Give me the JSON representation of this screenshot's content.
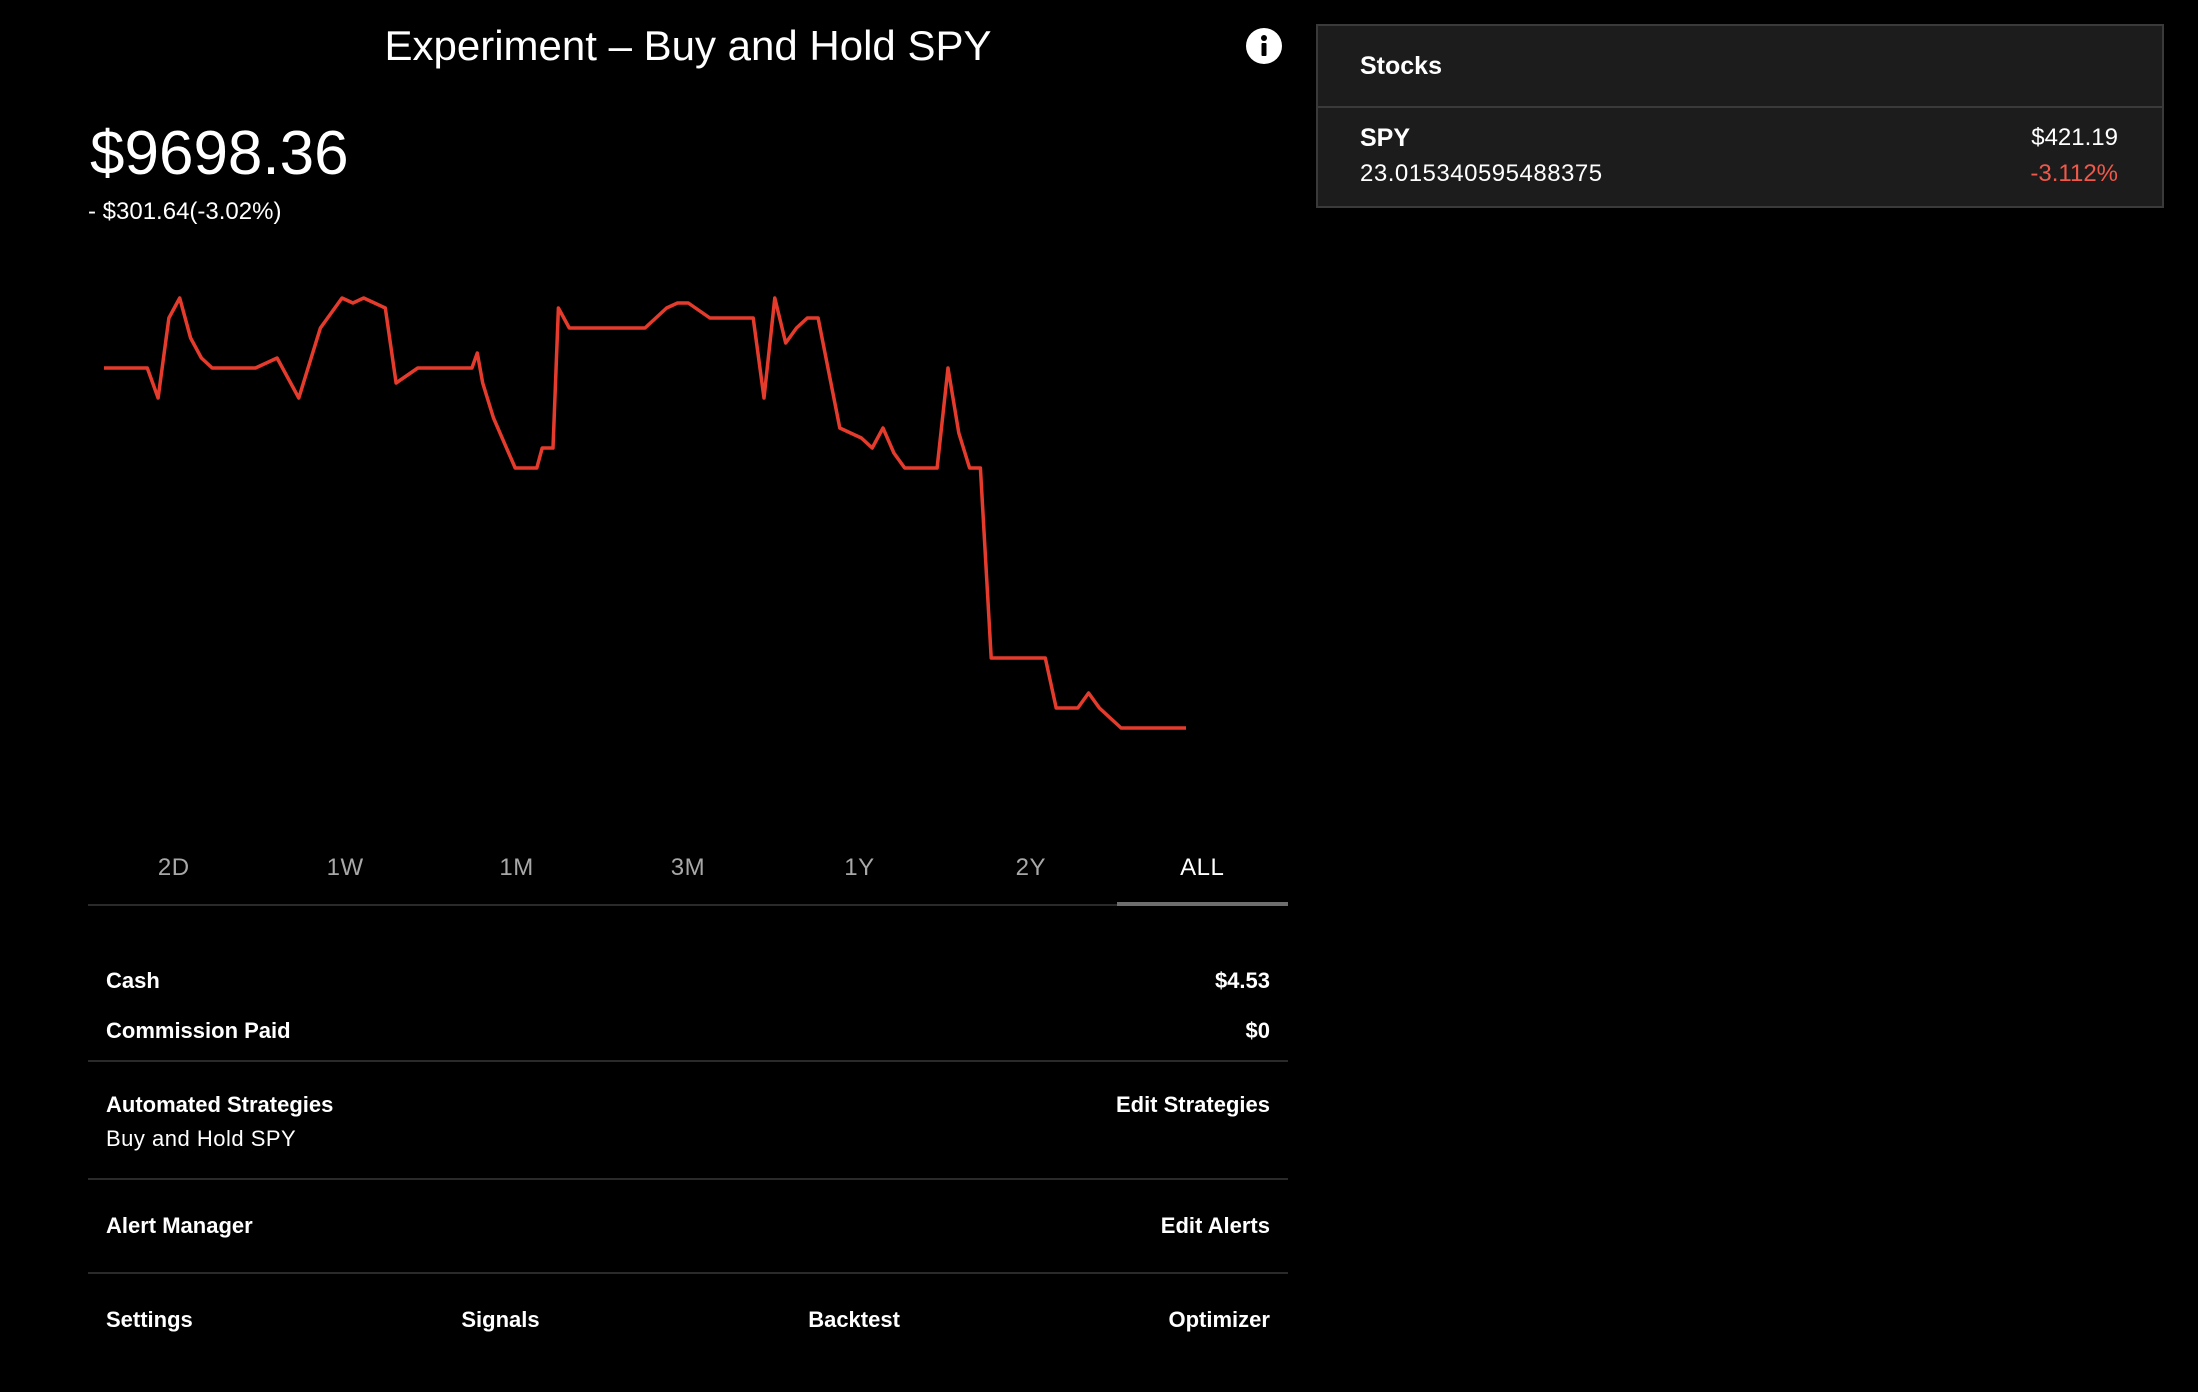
{
  "header": {
    "title": "Experiment – Buy and Hold SPY",
    "info_icon": "info-icon"
  },
  "portfolio": {
    "balance": "$9698.36",
    "change": "- $301.64(-3.02%)"
  },
  "colors": {
    "line": "#e53b2c",
    "negative": "#f0584a",
    "background": "#000000",
    "panel": "#1c1c1c"
  },
  "chart_data": {
    "type": "line",
    "title": "",
    "xlabel": "",
    "ylabel": "",
    "grid": false,
    "ylim": [
      0,
      100
    ],
    "x": [
      0,
      4,
      5,
      6,
      7,
      8,
      9,
      10,
      11,
      12,
      13,
      14,
      16,
      18,
      20,
      22,
      23,
      24,
      26,
      27,
      29,
      31,
      34,
      34.5,
      35,
      36,
      38,
      40,
      40.5,
      41,
      41.5,
      42,
      43,
      50,
      52,
      53,
      54,
      56,
      60,
      61,
      62,
      63,
      64,
      65,
      66,
      68,
      70,
      71,
      72,
      73,
      74,
      75,
      76,
      77,
      78,
      79,
      80,
      81,
      82,
      85,
      86,
      87,
      88,
      90,
      91,
      92,
      94,
      95,
      96,
      97,
      98,
      99,
      100
    ],
    "values": [
      80,
      80,
      74,
      90,
      94,
      86,
      82,
      80,
      80,
      80,
      80,
      80,
      82,
      74,
      88,
      94,
      93,
      94,
      92,
      77,
      80,
      80,
      80,
      83,
      77,
      70,
      60,
      60,
      64,
      64,
      64,
      92,
      88,
      88,
      92,
      93,
      93,
      90,
      90,
      74,
      94,
      85,
      88,
      90,
      90,
      68,
      66,
      64,
      68,
      63,
      60,
      60,
      60,
      60,
      80,
      67,
      60,
      60,
      22,
      22,
      22,
      22,
      12,
      12,
      15,
      12,
      8,
      8,
      8,
      8,
      8,
      8,
      8
    ]
  },
  "tabs": [
    {
      "label": "2D",
      "active": false
    },
    {
      "label": "1W",
      "active": false
    },
    {
      "label": "1M",
      "active": false
    },
    {
      "label": "3M",
      "active": false
    },
    {
      "label": "1Y",
      "active": false
    },
    {
      "label": "2Y",
      "active": false
    },
    {
      "label": "ALL",
      "active": true
    }
  ],
  "account": {
    "cash_label": "Cash",
    "cash_value": "$4.53",
    "commission_label": "Commission Paid",
    "commission_value": "$0"
  },
  "strategies": {
    "label": "Automated Strategies",
    "action": "Edit Strategies",
    "current": "Buy and Hold SPY"
  },
  "alerts": {
    "label": "Alert Manager",
    "action": "Edit Alerts"
  },
  "nav": {
    "settings": "Settings",
    "signals": "Signals",
    "backtest": "Backtest",
    "optimizer": "Optimizer"
  },
  "stocks": {
    "header": "Stocks",
    "items": [
      {
        "symbol": "SPY",
        "shares": "23.015340595488375",
        "price": "$421.19",
        "change": "-3.112%"
      }
    ]
  }
}
